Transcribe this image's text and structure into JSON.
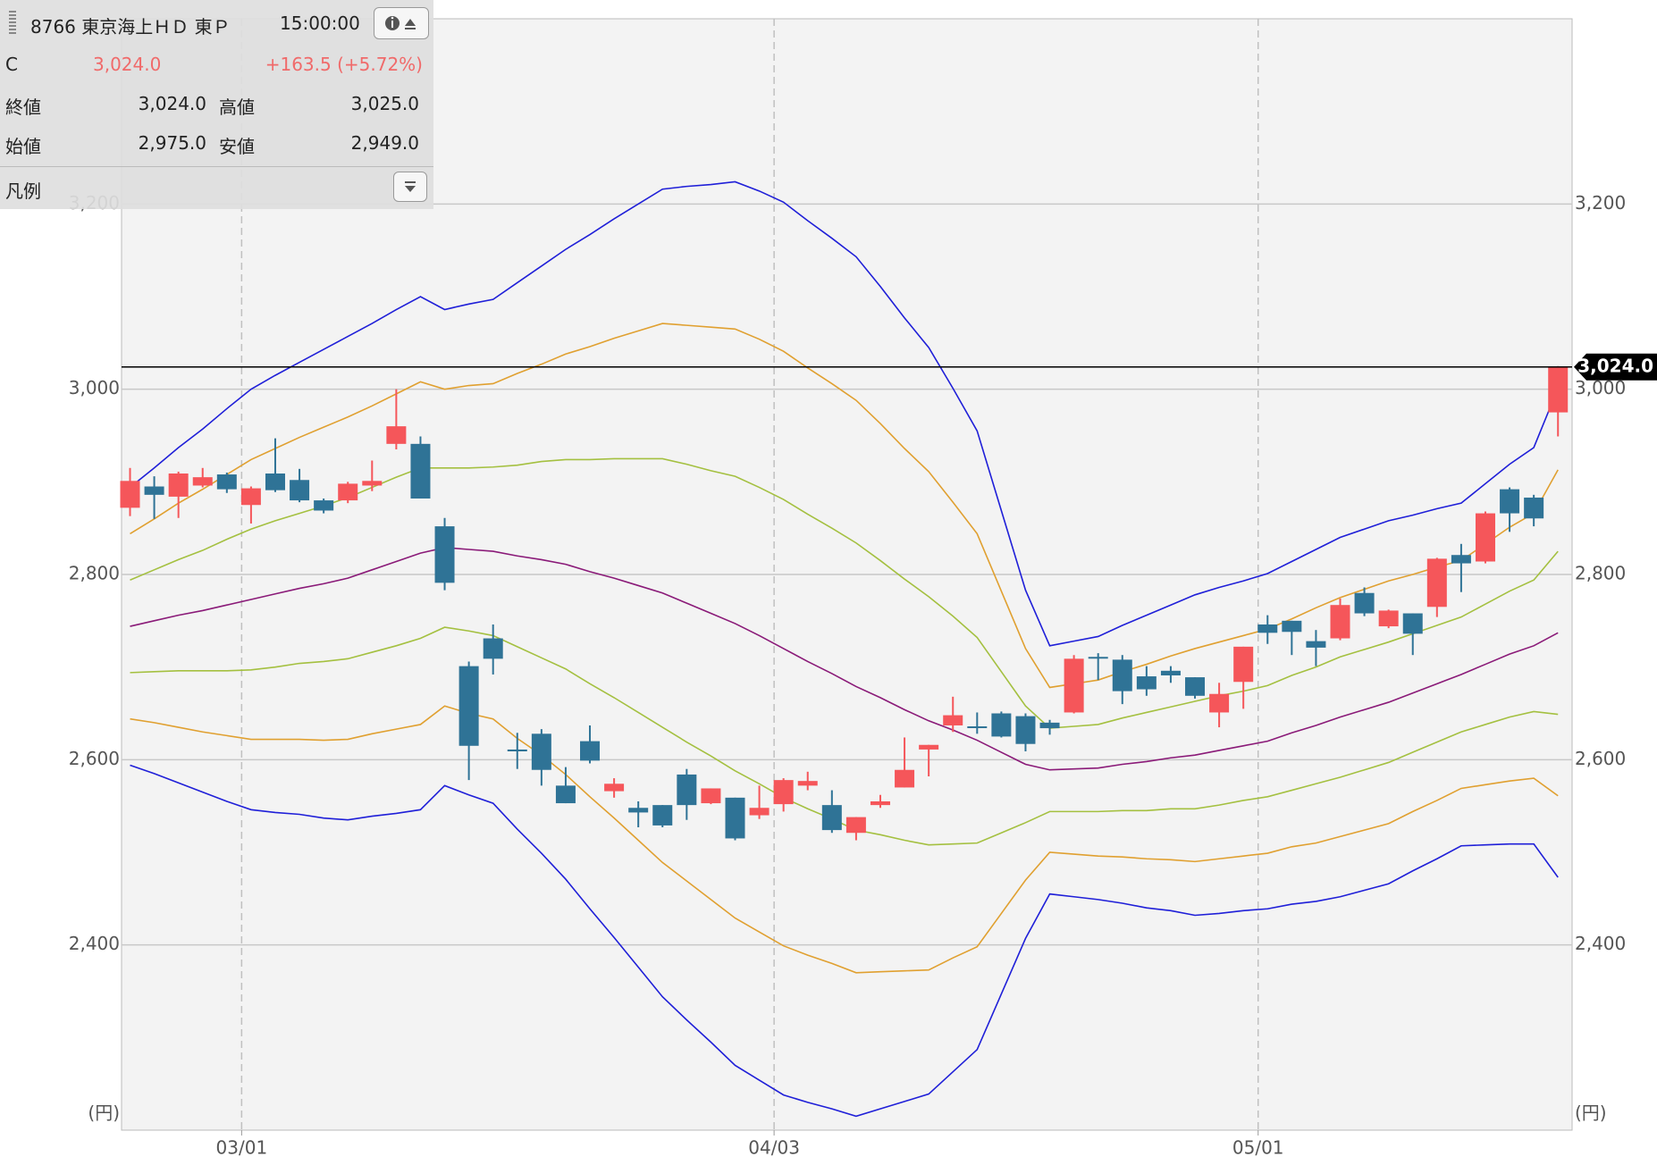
{
  "info_panel": {
    "code_name": "8766 東京海上ＨＤ 東Ｐ",
    "time": "15:00:00",
    "type": "C",
    "price": "3,024.0",
    "change": "+163.5 (+5.72%)",
    "rows": [
      [
        "終値",
        "3,024.0",
        "高値",
        "3,025.0"
      ],
      [
        "始値",
        "2,975.0",
        "安値",
        "2,949.0"
      ]
    ],
    "legend": "凡例"
  },
  "chart_data": {
    "type": "candlestick",
    "y_unit": "(円)",
    "categories": [
      null,
      null,
      null,
      null,
      null,
      "03/01",
      null,
      null,
      null,
      null,
      null,
      null,
      null,
      null,
      null,
      null,
      null,
      null,
      null,
      null,
      null,
      null,
      null,
      null,
      null,
      null,
      null,
      "04/03",
      null,
      null,
      null,
      null,
      null,
      null,
      null,
      null,
      null,
      null,
      null,
      null,
      null,
      null,
      null,
      null,
      null,
      null,
      null,
      "05/01",
      null,
      null,
      null,
      null,
      null,
      null,
      null,
      null,
      null,
      null,
      null,
      null
    ],
    "open": [
      2872,
      2895,
      2884,
      2896,
      2908,
      2875,
      2909,
      2902,
      2880,
      2880,
      2896,
      2941,
      2941,
      2852,
      2701,
      2731,
      2611,
      2628,
      2572,
      2620,
      2566,
      2548,
      2551,
      2584,
      2553,
      2559,
      2540,
      2552,
      2572,
      2551,
      2521,
      2551,
      2570,
      2611,
      2637,
      2636,
      2650,
      2647,
      2640,
      2651,
      2711,
      2708,
      2690,
      2696,
      2689,
      2651,
      2684,
      2746,
      2750,
      2728,
      2731,
      2780,
      2744,
      2758,
      2765,
      2821,
      2814,
      2892,
      2883,
      2975
    ],
    "high": [
      2915,
      2906,
      2911,
      2915,
      2910,
      2895,
      2947,
      2914,
      2882,
      2900,
      2923,
      3000,
      2949,
      2861,
      2706,
      2746,
      2629,
      2633,
      2592,
      2637,
      2580,
      2555,
      2551,
      2590,
      2569,
      2559,
      2572,
      2580,
      2587,
      2567,
      2538,
      2562,
      2624,
      2616,
      2668,
      2651,
      2652,
      2650,
      2643,
      2713,
      2715,
      2713,
      2701,
      2701,
      2689,
      2683,
      2722,
      2756,
      2750,
      2740,
      2774,
      2786,
      2762,
      2758,
      2818,
      2833,
      2868,
      2894,
      2886,
      3025
    ],
    "low": [
      2863,
      2860,
      2861,
      2894,
      2888,
      2855,
      2889,
      2878,
      2866,
      2877,
      2890,
      2935,
      2882,
      2783,
      2578,
      2692,
      2590,
      2572,
      2553,
      2596,
      2559,
      2527,
      2527,
      2535,
      2552,
      2513,
      2536,
      2544,
      2567,
      2521,
      2513,
      2548,
      2570,
      2582,
      2630,
      2628,
      2624,
      2609,
      2627,
      2650,
      2686,
      2660,
      2669,
      2683,
      2666,
      2635,
      2655,
      2725,
      2713,
      2701,
      2729,
      2755,
      2742,
      2713,
      2754,
      2781,
      2812,
      2846,
      2852,
      2949
    ],
    "close": [
      2901,
      2886,
      2909,
      2905,
      2892,
      2893,
      2891,
      2880,
      2869,
      2898,
      2901,
      2960,
      2882,
      2791,
      2615,
      2709,
      2609,
      2589,
      2553,
      2599,
      2574,
      2543,
      2529,
      2551,
      2569,
      2515,
      2548,
      2578,
      2577,
      2524,
      2538,
      2555,
      2589,
      2616,
      2648,
      2635,
      2625,
      2617,
      2634,
      2709,
      2710,
      2674,
      2676,
      2691,
      2669,
      2671,
      2722,
      2737,
      2738,
      2721,
      2767,
      2758,
      2761,
      2736,
      2817,
      2812,
      2866,
      2866,
      2860.5,
      3024
    ],
    "up_color": "#f5565a",
    "down_color": "#2f7396",
    "overlays": [
      {
        "color": "#1f1fd8",
        "values": [
          2894,
          2915,
          2937,
          2957,
          2979,
          3000,
          3015,
          3029,
          3043,
          3057,
          3071,
          3086,
          3100,
          3086,
          3092,
          3097,
          3115,
          3133,
          3151,
          3167,
          3184,
          3200,
          3216,
          3219,
          3221,
          3224,
          3214,
          3202,
          3182,
          3163,
          3143,
          3111,
          3077,
          3045,
          3001,
          2955,
          2869,
          2783,
          2723,
          2728,
          2733,
          2745,
          2756,
          2767,
          2778,
          2786,
          2793,
          2801,
          2814,
          2827,
          2840,
          2849,
          2858,
          2864,
          2871,
          2877,
          2898,
          2919,
          2937,
          3001
        ]
      },
      {
        "color": "#e0a030",
        "values": [
          2844,
          2860,
          2877,
          2892,
          2908,
          2924,
          2936,
          2948,
          2959,
          2970,
          2982,
          2995,
          3008,
          3000,
          3004,
          3006,
          3017,
          3027,
          3038,
          3046,
          3055,
          3063,
          3071,
          3069,
          3067,
          3065,
          3054,
          3041,
          3023,
          3006,
          2988,
          2963,
          2936,
          2911,
          2878,
          2844,
          2782,
          2720,
          2678,
          2682,
          2686,
          2695,
          2703,
          2712,
          2720,
          2727,
          2734,
          2741,
          2752,
          2764,
          2775,
          2784,
          2793,
          2800,
          2808,
          2815,
          2833,
          2851,
          2866,
          2913
        ]
      },
      {
        "color": "#a4c040",
        "values": [
          2794,
          2805,
          2816,
          2826,
          2838,
          2849,
          2858,
          2866,
          2874,
          2883,
          2894,
          2905,
          2915,
          2915,
          2915,
          2916,
          2918,
          2922,
          2924,
          2924,
          2925,
          2925,
          2925,
          2919,
          2912,
          2906,
          2894,
          2881,
          2865,
          2850,
          2834,
          2815,
          2795,
          2776,
          2755,
          2732,
          2695,
          2658,
          2634,
          2636,
          2638,
          2645,
          2651,
          2657,
          2663,
          2669,
          2674,
          2680,
          2691,
          2700,
          2711,
          2719,
          2727,
          2736,
          2745,
          2754,
          2768,
          2782,
          2794,
          2825
        ]
      },
      {
        "color": "#8a1a78",
        "values": [
          2744,
          2750,
          2756,
          2761,
          2767,
          2773,
          2779,
          2785,
          2790,
          2796,
          2805,
          2814,
          2823,
          2829,
          2827,
          2825,
          2820,
          2816,
          2811,
          2803,
          2796,
          2788,
          2780,
          2769,
          2758,
          2747,
          2734,
          2720,
          2706,
          2693,
          2679,
          2667,
          2654,
          2642,
          2632,
          2621,
          2608,
          2595,
          2589,
          2590,
          2591,
          2595,
          2598,
          2602,
          2605,
          2610,
          2615,
          2620,
          2629,
          2637,
          2646,
          2654,
          2662,
          2672,
          2682,
          2692,
          2703,
          2714,
          2723,
          2737
        ]
      },
      {
        "color": "#a4c040",
        "values": [
          2694,
          2695,
          2696,
          2696,
          2696,
          2697,
          2700,
          2704,
          2706,
          2709,
          2716,
          2723,
          2731,
          2743,
          2739,
          2734,
          2722,
          2710,
          2698,
          2682,
          2667,
          2651,
          2635,
          2619,
          2604,
          2588,
          2574,
          2559,
          2547,
          2536,
          2524,
          2519,
          2513,
          2508,
          2509,
          2510,
          2521,
          2532,
          2544,
          2544,
          2544,
          2545,
          2545,
          2547,
          2547,
          2551,
          2556,
          2560,
          2567,
          2574,
          2581,
          2589,
          2597,
          2608,
          2619,
          2630,
          2638,
          2646,
          2652,
          2649
        ]
      },
      {
        "color": "#e0a030",
        "values": [
          2644,
          2640,
          2635,
          2630,
          2626,
          2622,
          2622,
          2622,
          2621,
          2622,
          2628,
          2633,
          2638,
          2658,
          2650,
          2644,
          2623,
          2605,
          2584,
          2560,
          2537,
          2513,
          2489,
          2469,
          2449,
          2429,
          2414,
          2399,
          2389,
          2380,
          2370,
          2371,
          2372,
          2373,
          2386,
          2398,
          2434,
          2470,
          2500,
          2498,
          2496,
          2495,
          2493,
          2492,
          2490,
          2493,
          2496,
          2499,
          2506,
          2510,
          2517,
          2524,
          2531,
          2544,
          2556,
          2569,
          2573,
          2577,
          2580,
          2561
        ]
      },
      {
        "color": "#1f1fd8",
        "values": [
          2594,
          2585,
          2575,
          2565,
          2555,
          2546,
          2543,
          2541,
          2537,
          2535,
          2539,
          2542,
          2546,
          2572,
          2562,
          2553,
          2525,
          2499,
          2471,
          2439,
          2408,
          2376,
          2344,
          2319,
          2295,
          2270,
          2254,
          2238,
          2230,
          2223,
          2215,
          2223,
          2231,
          2239,
          2263,
          2287,
          2347,
          2407,
          2455,
          2452,
          2449,
          2445,
          2440,
          2437,
          2432,
          2434,
          2437,
          2439,
          2444,
          2447,
          2452,
          2459,
          2466,
          2480,
          2493,
          2507,
          2508,
          2509,
          2509,
          2473
        ]
      }
    ],
    "last_price": {
      "value": 3024,
      "label": "3,024.0"
    },
    "ylim": [
      2200,
      3400
    ],
    "yticks": [
      {
        "value": 2400,
        "label": "2,400"
      },
      {
        "value": 2600,
        "label": "2,600"
      },
      {
        "value": 2800,
        "label": "2,800"
      },
      {
        "value": 3000,
        "label": "3,000"
      },
      {
        "value": 3200,
        "label": "3,200"
      }
    ],
    "grid": true
  }
}
